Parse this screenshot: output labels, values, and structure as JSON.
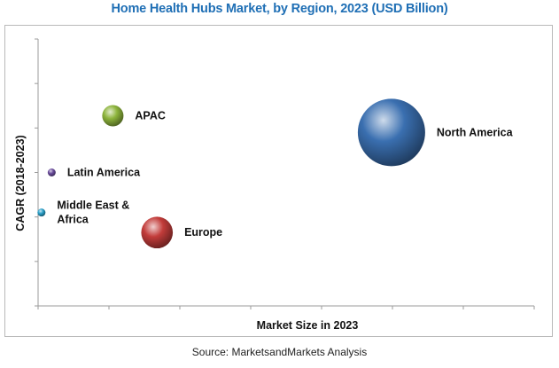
{
  "chart_data": {
    "type": "bubble",
    "title": "Home Health Hubs Market, by Region, 2023 (USD Billion)",
    "xlabel": "Market Size in 2023",
    "ylabel": "CAGR (2018-2023)",
    "source": "Source: MarketsandMarkets Analysis",
    "grid": false,
    "xlim": [
      0,
      7.3
    ],
    "ylim": [
      0,
      8
    ],
    "x_ticks": 7,
    "y_ticks": 6,
    "points": [
      {
        "label": "North America",
        "x": 5.2,
        "y": 5.2,
        "size": 1.0,
        "color": "#3a6fb0"
      },
      {
        "label": "APAC",
        "x": 1.1,
        "y": 5.7,
        "size": 0.1,
        "color": "#8db43c"
      },
      {
        "label": "Latin America",
        "x": 0.2,
        "y": 4.0,
        "size": 0.01,
        "color": "#6a4c9c"
      },
      {
        "label": "Middle East &\nAfrica",
        "x": 0.05,
        "y": 2.8,
        "size": 0.005,
        "color": "#2aa0c9"
      },
      {
        "label": "Europe",
        "x": 1.75,
        "y": 2.2,
        "size": 0.22,
        "color": "#c23c3a"
      }
    ]
  },
  "colors": {
    "title": "#1f6fb5",
    "axis": "#9b9b9b"
  }
}
